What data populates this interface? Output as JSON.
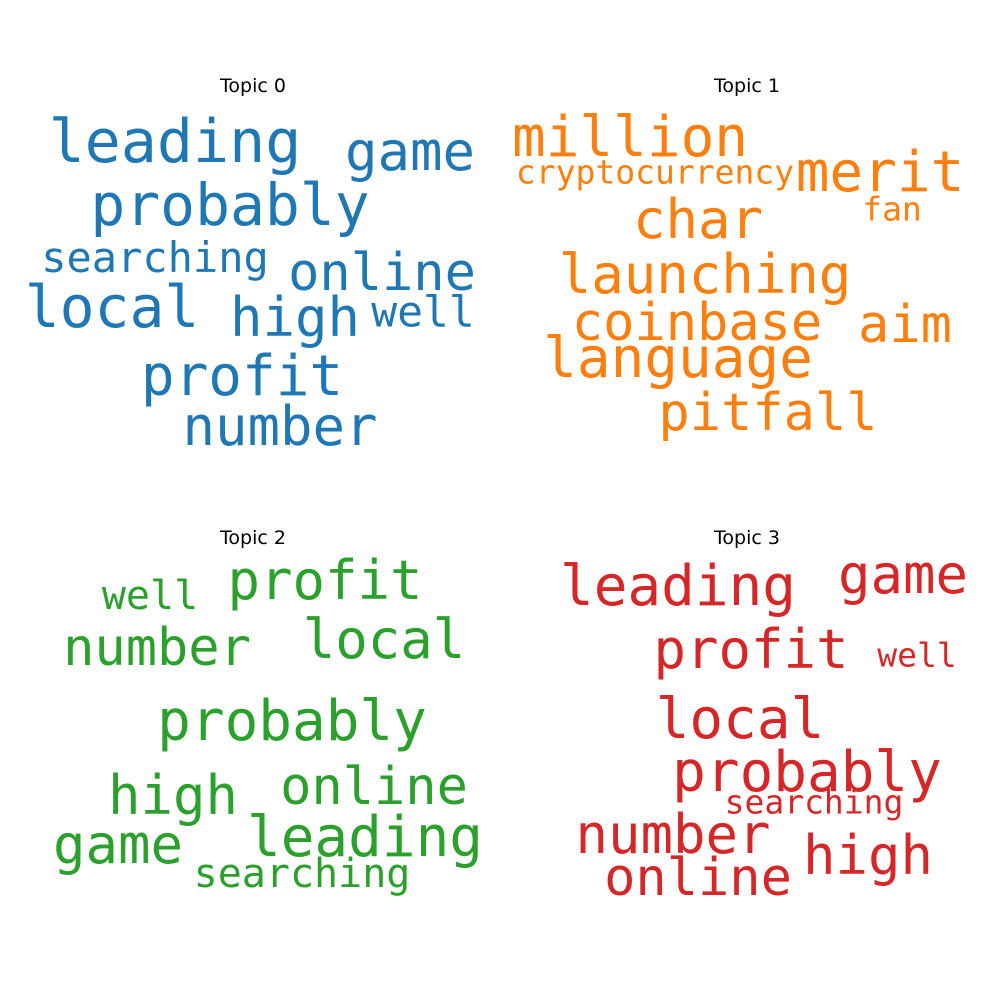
{
  "panels": [
    {
      "title": "Topic 0",
      "color": "#1f77b4",
      "words": [
        {
          "text": "leading",
          "weight": 0.92
        },
        {
          "text": "game",
          "weight": 0.84
        },
        {
          "text": "probably",
          "weight": 0.9
        },
        {
          "text": "searching",
          "weight": 0.66
        },
        {
          "text": "online",
          "weight": 0.86
        },
        {
          "text": "local",
          "weight": 0.92
        },
        {
          "text": "high",
          "weight": 0.86
        },
        {
          "text": "well",
          "weight": 0.7
        },
        {
          "text": "profit",
          "weight": 0.9
        },
        {
          "text": "number",
          "weight": 0.9
        }
      ]
    },
    {
      "title": "Topic 1",
      "color": "#ff7f0e",
      "words": [
        {
          "text": "million",
          "weight": 0.88
        },
        {
          "text": "cryptocurrency",
          "weight": 0.55
        },
        {
          "text": "merit",
          "weight": 0.9
        },
        {
          "text": "fan",
          "weight": 0.55
        },
        {
          "text": "char",
          "weight": 0.86
        },
        {
          "text": "launching",
          "weight": 0.86
        },
        {
          "text": "coinbase",
          "weight": 0.82
        },
        {
          "text": "aim",
          "weight": 0.82
        },
        {
          "text": "language",
          "weight": 0.86
        },
        {
          "text": "pitfall",
          "weight": 0.8
        }
      ]
    },
    {
      "title": "Topic 2",
      "color": "#2ca02c",
      "words": [
        {
          "text": "well",
          "weight": 0.62
        },
        {
          "text": "profit",
          "weight": 0.88
        },
        {
          "text": "number",
          "weight": 0.86
        },
        {
          "text": "local",
          "weight": 0.86
        },
        {
          "text": "probably",
          "weight": 0.9
        },
        {
          "text": "high",
          "weight": 0.86
        },
        {
          "text": "online",
          "weight": 0.86
        },
        {
          "text": "game",
          "weight": 0.86
        },
        {
          "text": "leading",
          "weight": 0.9
        },
        {
          "text": "searching",
          "weight": 0.66
        }
      ]
    },
    {
      "title": "Topic 3",
      "color": "#d62728",
      "words": [
        {
          "text": "leading",
          "weight": 0.88
        },
        {
          "text": "game",
          "weight": 0.84
        },
        {
          "text": "profit",
          "weight": 0.86
        },
        {
          "text": "well",
          "weight": 0.55
        },
        {
          "text": "local",
          "weight": 0.86
        },
        {
          "text": "probably",
          "weight": 0.88
        },
        {
          "text": "searching",
          "weight": 0.55
        },
        {
          "text": "number",
          "weight": 0.84
        },
        {
          "text": "high",
          "weight": 0.86
        },
        {
          "text": "online",
          "weight": 0.86
        }
      ]
    }
  ]
}
